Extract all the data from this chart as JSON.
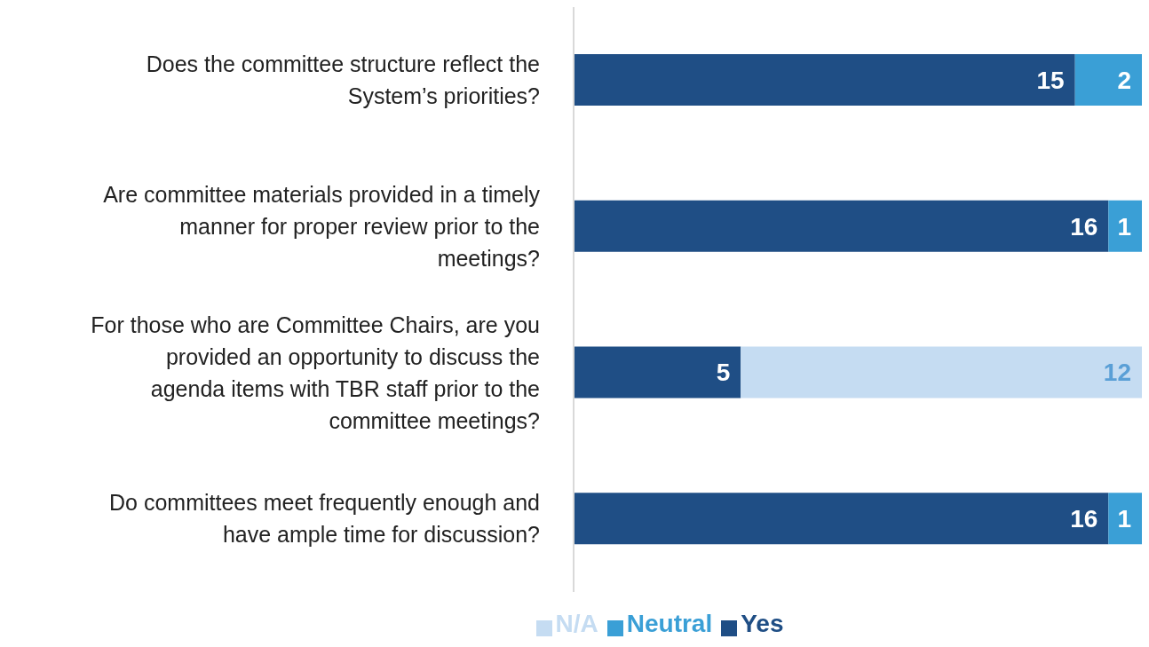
{
  "chart_data": {
    "type": "bar",
    "orientation": "horizontal",
    "stacked": true,
    "data_labels": true,
    "legend": "bottom",
    "categories": [
      "Does the committee structure reflect the System’s priorities?",
      "Are committee materials provided in a timely manner for proper review prior to the meetings?",
      "For those who are Committee Chairs, are you provided an opportunity to discuss the agenda items with TBR staff prior to the committee meetings?",
      "Do committees meet frequently enough and have ample time for discussion?"
    ],
    "series": [
      {
        "name": "Yes",
        "color": "#1f4e85",
        "values": [
          15,
          16,
          5,
          16
        ]
      },
      {
        "name": "Neutral",
        "color": "#3a9fd6",
        "values": [
          2,
          1,
          null,
          1
        ]
      },
      {
        "name": "N/A",
        "color": "#c5dcf2",
        "values": [
          null,
          null,
          12,
          null
        ]
      }
    ]
  }
}
